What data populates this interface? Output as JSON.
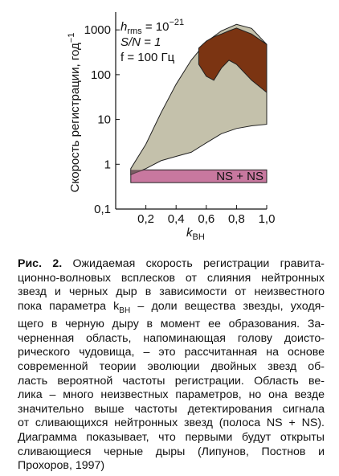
{
  "chart_data": {
    "type": "area",
    "ylabel": "Скорость регистрации, год",
    "ylabel_sup": "−1",
    "xlabel": "k",
    "xlabel_sub": "ВН",
    "annotations": {
      "h": "h",
      "h_sub": "rms",
      "h_eq": " = 10",
      "h_sup": "−21",
      "sn": "S/N = 1",
      "f": "f = 100 Гц"
    },
    "xlim": [
      0,
      1.0
    ],
    "xticks": [
      {
        "value": 0.2,
        "label": "0,2"
      },
      {
        "value": 0.4,
        "label": "0,4"
      },
      {
        "value": 0.6,
        "label": "0,6"
      },
      {
        "value": 0.8,
        "label": "0,8"
      },
      {
        "value": 1.0,
        "label": "1,0"
      }
    ],
    "ylim": [
      0.1,
      2500
    ],
    "ylog": true,
    "yticks": [
      {
        "value": 0.1,
        "label": "0,1"
      },
      1,
      10,
      100,
      1000
    ],
    "series": [
      {
        "color": "#c8789f",
        "label": "NS + NS",
        "x": [
          0.1,
          1.0
        ],
        "upper": [
          0.75,
          0.75
        ],
        "lower": [
          0.39,
          0.39
        ]
      },
      {
        "color": "#c4c1ab",
        "x": [
          0.1,
          0.2,
          0.3,
          0.4,
          0.5,
          0.6,
          0.7,
          0.8,
          0.9,
          1.0
        ],
        "upper": [
          0.8,
          2.8,
          14,
          61,
          210,
          540,
          950,
          1330,
          1080,
          475
        ],
        "lower": [
          0.59,
          0.8,
          1.2,
          1.5,
          1.85,
          3,
          4.8,
          6.3,
          7.2,
          7.8
        ]
      },
      {
        "color": "#7b3412",
        "x": [
          0.55,
          0.6,
          0.65,
          0.7,
          0.75,
          0.8,
          0.9,
          1.0
        ],
        "upper": [
          390,
          560,
          700,
          810,
          950,
          1100,
          810,
          475
        ],
        "lower": [
          170,
          92,
          75,
          140,
          210,
          170,
          75,
          40
        ]
      }
    ]
  },
  "caption": {
    "label": "Рис. 2.",
    "lines": [
      " Ожидаемая скорость регистрации гравита-",
      "ционно-волновых всплесков от слияния нейтронных",
      "звезд и черных дыр в зависимости от неизвестного",
      [
        "пока параметра k",
        "ВН",
        " – доли вещества звезды, уходя-"
      ],
      "щего в черную дыру в момент ее образования. За-",
      "черненная область, напоминающая голову доисто-",
      "рического чудовища, – это рассчитанная на основе",
      "современной теории эволюции двойных звезд об-",
      "ласть вероятной частоты регистрации. Область ве-",
      "лика – много неизвестных параметров, но она везде",
      "значительно выше частоты детектирования сигнала",
      "от сливающихся нейтронных звезд (полоса NS + NS).",
      "Диаграмма показывает, что первыми будут открыты",
      "сливающиеся черные дыры (Липунов, Постнов и",
      "Прохоров, 1997)"
    ]
  }
}
